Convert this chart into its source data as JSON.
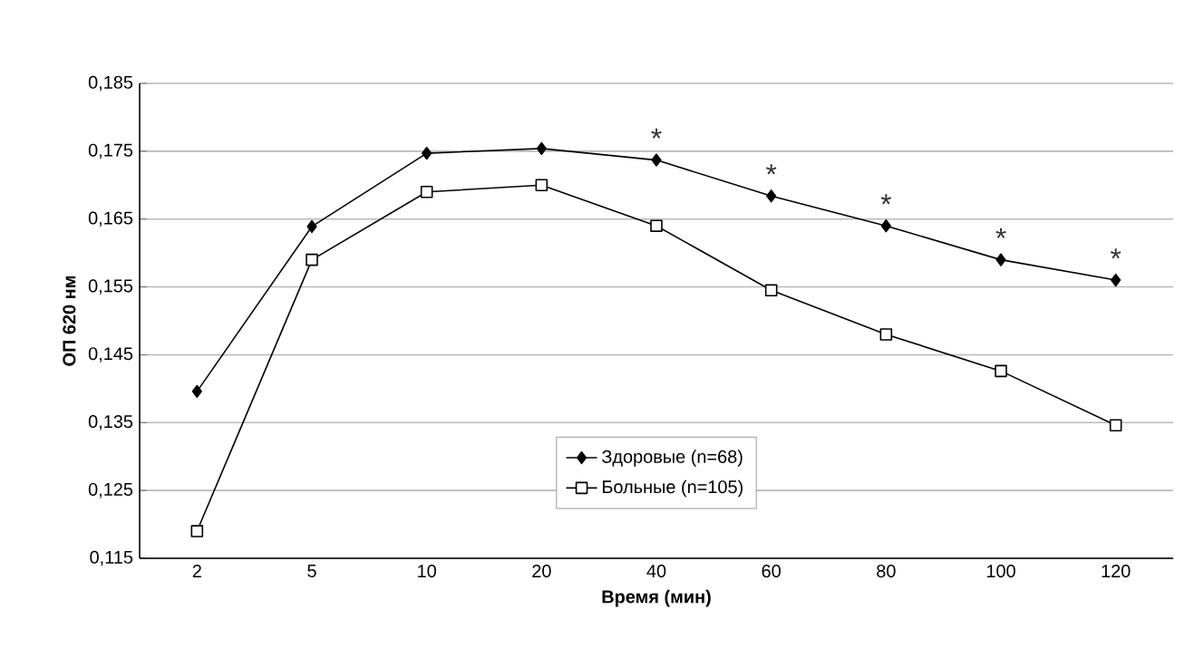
{
  "chart_data": {
    "type": "line",
    "xlabel": "Время (мин)",
    "ylabel": "ОП 620 нм",
    "categories": [
      "2",
      "5",
      "10",
      "20",
      "40",
      "60",
      "80",
      "100",
      "120"
    ],
    "series": [
      {
        "name": "Здоровые (n=68)",
        "color": "#000000",
        "marker": "diamond",
        "values": [
          0.1396,
          0.1639,
          0.1747,
          0.1754,
          0.1737,
          0.1684,
          0.164,
          0.159,
          0.156
        ]
      },
      {
        "name": "Больные (n=105)",
        "color": "#000000",
        "marker": "square",
        "values": [
          0.119,
          0.159,
          0.169,
          0.17,
          0.164,
          0.1545,
          0.148,
          0.1426,
          0.1346
        ]
      }
    ],
    "ylim": [
      0.115,
      0.185
    ],
    "yticks": [
      {
        "value": 0.115,
        "label": "0,115"
      },
      {
        "value": 0.125,
        "label": "0,125"
      },
      {
        "value": 0.135,
        "label": "0,135"
      },
      {
        "value": 0.145,
        "label": "0,145"
      },
      {
        "value": 0.155,
        "label": "0,155"
      },
      {
        "value": 0.165,
        "label": "0,165"
      },
      {
        "value": 0.175,
        "label": "0,175"
      },
      {
        "value": 0.185,
        "label": "0,185"
      }
    ],
    "grid": "y",
    "legend": "bottom",
    "line_style": "solid",
    "annotations": [
      {
        "text": "*",
        "x": "40",
        "y": 0.1737
      },
      {
        "text": "*",
        "x": "60",
        "y": 0.1684
      },
      {
        "text": "*",
        "x": "80",
        "y": 0.164
      },
      {
        "text": "*",
        "x": "100",
        "y": 0.159
      },
      {
        "text": "*",
        "x": "120",
        "y": 0.156
      }
    ]
  }
}
